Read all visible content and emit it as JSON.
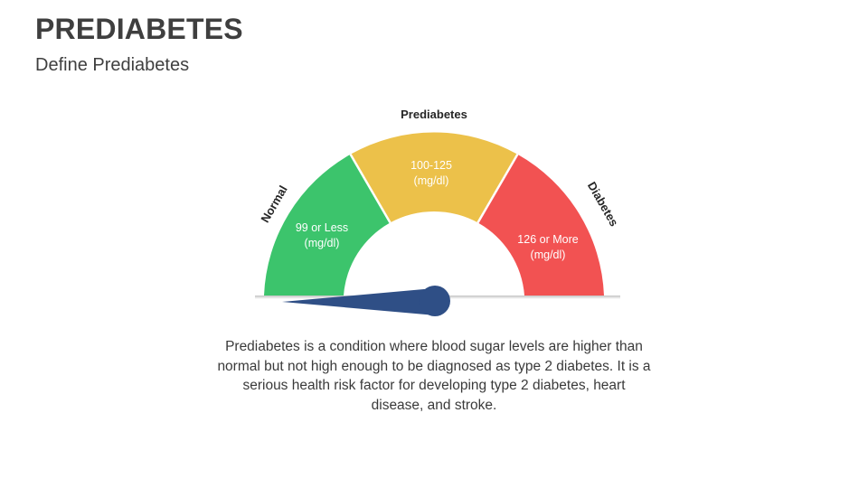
{
  "slide": {
    "title": "PREDIABETES",
    "subtitle": "Define Prediabetes"
  },
  "gauge": {
    "segments": [
      {
        "category": "Normal",
        "range_line1": "99 or Less",
        "range_line2": "(mg/dl)",
        "color": "#3cc46c"
      },
      {
        "category": "Prediabetes",
        "range_line1": "100-125",
        "range_line2": "(mg/dl)",
        "color": "#ecc14a"
      },
      {
        "category": "Diabetes",
        "range_line1": "126 or More",
        "range_line2": "(mg/dl)",
        "color": "#f25252"
      }
    ],
    "needle_color": "#2f4f86"
  },
  "description": "Prediabetes is a condition where blood sugar levels are higher than normal but not high enough to be diagnosed as type 2 diabetes. It is a serious health risk factor for developing type 2 diabetes, heart disease, and stroke."
}
